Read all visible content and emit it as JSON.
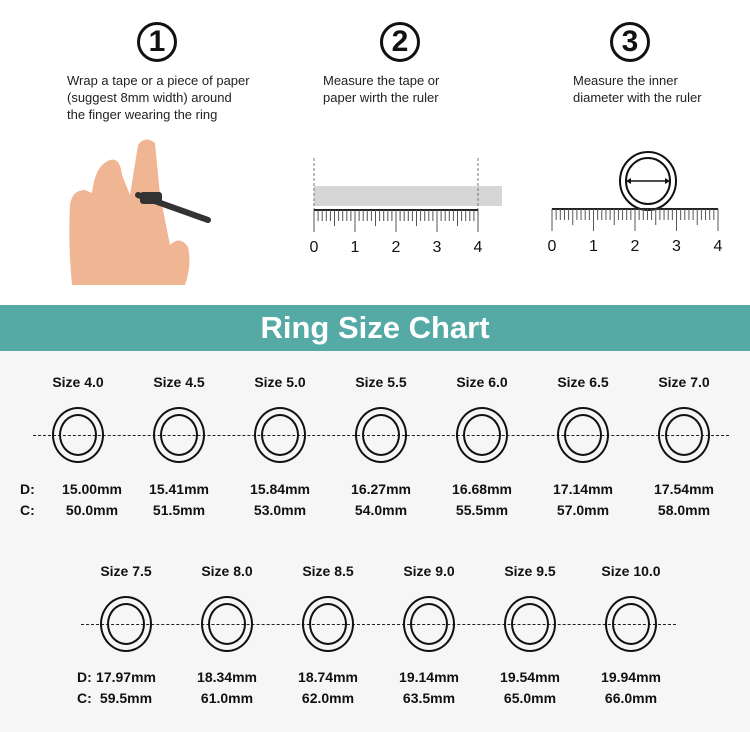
{
  "steps": [
    {
      "number": "1",
      "text": [
        "Wrap a tape or a piece of paper",
        "(suggest 8mm width) around",
        "the finger wearing the ring"
      ]
    },
    {
      "number": "2",
      "text": [
        "Measure the tape or",
        "paper wirth the ruler"
      ]
    },
    {
      "number": "3",
      "text": [
        "Measure the inner",
        "diameter with the ruler"
      ]
    }
  ],
  "ruler_labels": [
    "0",
    "1",
    "2",
    "3",
    "4"
  ],
  "title": "Ring Size Chart",
  "row_prefix": {
    "d": "D:",
    "c": "C:"
  },
  "rows": [
    [
      {
        "size": "Size 4.0",
        "d": "15.00mm",
        "c": "50.0mm"
      },
      {
        "size": "Size 4.5",
        "d": "15.41mm",
        "c": "51.5mm"
      },
      {
        "size": "Size 5.0",
        "d": "15.84mm",
        "c": "53.0mm"
      },
      {
        "size": "Size 5.5",
        "d": "16.27mm",
        "c": "54.0mm"
      },
      {
        "size": "Size 6.0",
        "d": "16.68mm",
        "c": "55.5mm"
      },
      {
        "size": "Size 6.5",
        "d": "17.14mm",
        "c": "57.0mm"
      },
      {
        "size": "Size 7.0",
        "d": "17.54mm",
        "c": "58.0mm"
      }
    ],
    [
      {
        "size": "Size 7.5",
        "d": "17.97mm",
        "c": "59.5mm"
      },
      {
        "size": "Size 8.0",
        "d": "18.34mm",
        "c": "61.0mm"
      },
      {
        "size": "Size 8.5",
        "d": "18.74mm",
        "c": "62.0mm"
      },
      {
        "size": "Size 9.0",
        "d": "19.14mm",
        "c": "63.5mm"
      },
      {
        "size": "Size 9.5",
        "d": "19.54mm",
        "c": "65.0mm"
      },
      {
        "size": "Size 10.0",
        "d": "19.94mm",
        "c": "66.0mm"
      }
    ]
  ],
  "colors": {
    "banner": "#55aaa6",
    "skin": "#f0b592",
    "sizer": "#333333"
  }
}
